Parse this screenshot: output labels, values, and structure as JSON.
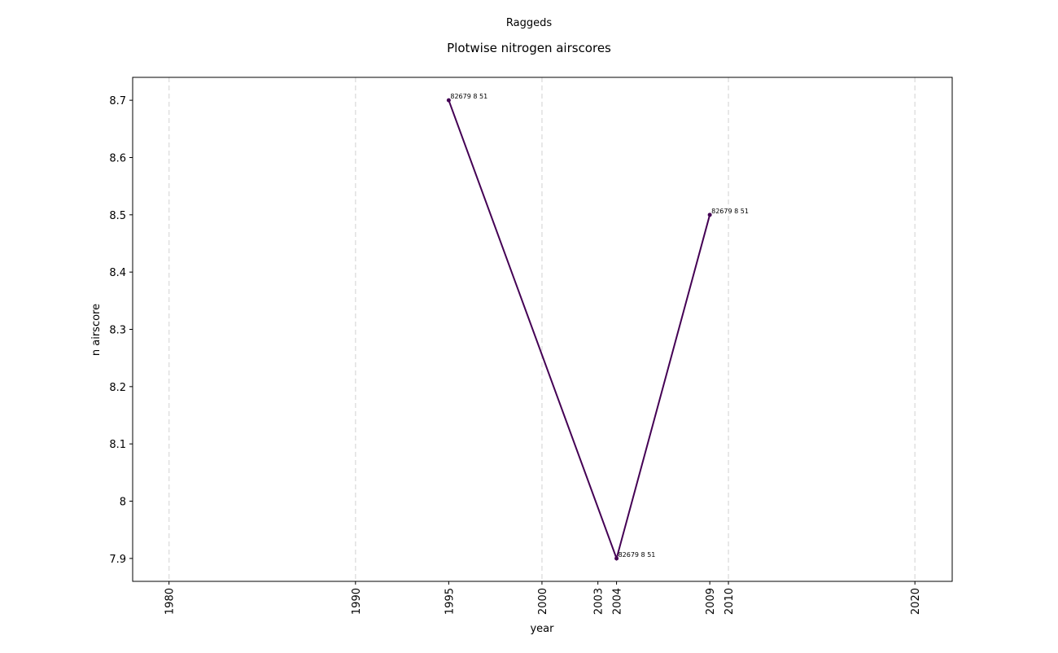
{
  "chart_data": {
    "type": "line",
    "suptitle": "Raggeds",
    "title": "Plotwise nitrogen airscores",
    "xlabel": "year",
    "ylabel": "n airscore",
    "x": [
      1995,
      2004,
      2009
    ],
    "values": [
      8.7,
      7.9,
      8.5
    ],
    "annotations": [
      "82679 8 51",
      "82679 8 51",
      "82679 8 51"
    ],
    "color": "#440154",
    "xlim": [
      1978.05,
      2022.0
    ],
    "xticks": [
      1980,
      1990,
      1995,
      2000,
      2003,
      2004,
      2009,
      2010,
      2020
    ],
    "xgrid": [
      1980,
      1990,
      2000,
      2010,
      2020
    ],
    "ylim": [
      7.86,
      8.74
    ],
    "yticks": [
      7.9,
      8.0,
      8.1,
      8.2,
      8.3,
      8.4,
      8.5,
      8.6,
      8.7
    ]
  }
}
